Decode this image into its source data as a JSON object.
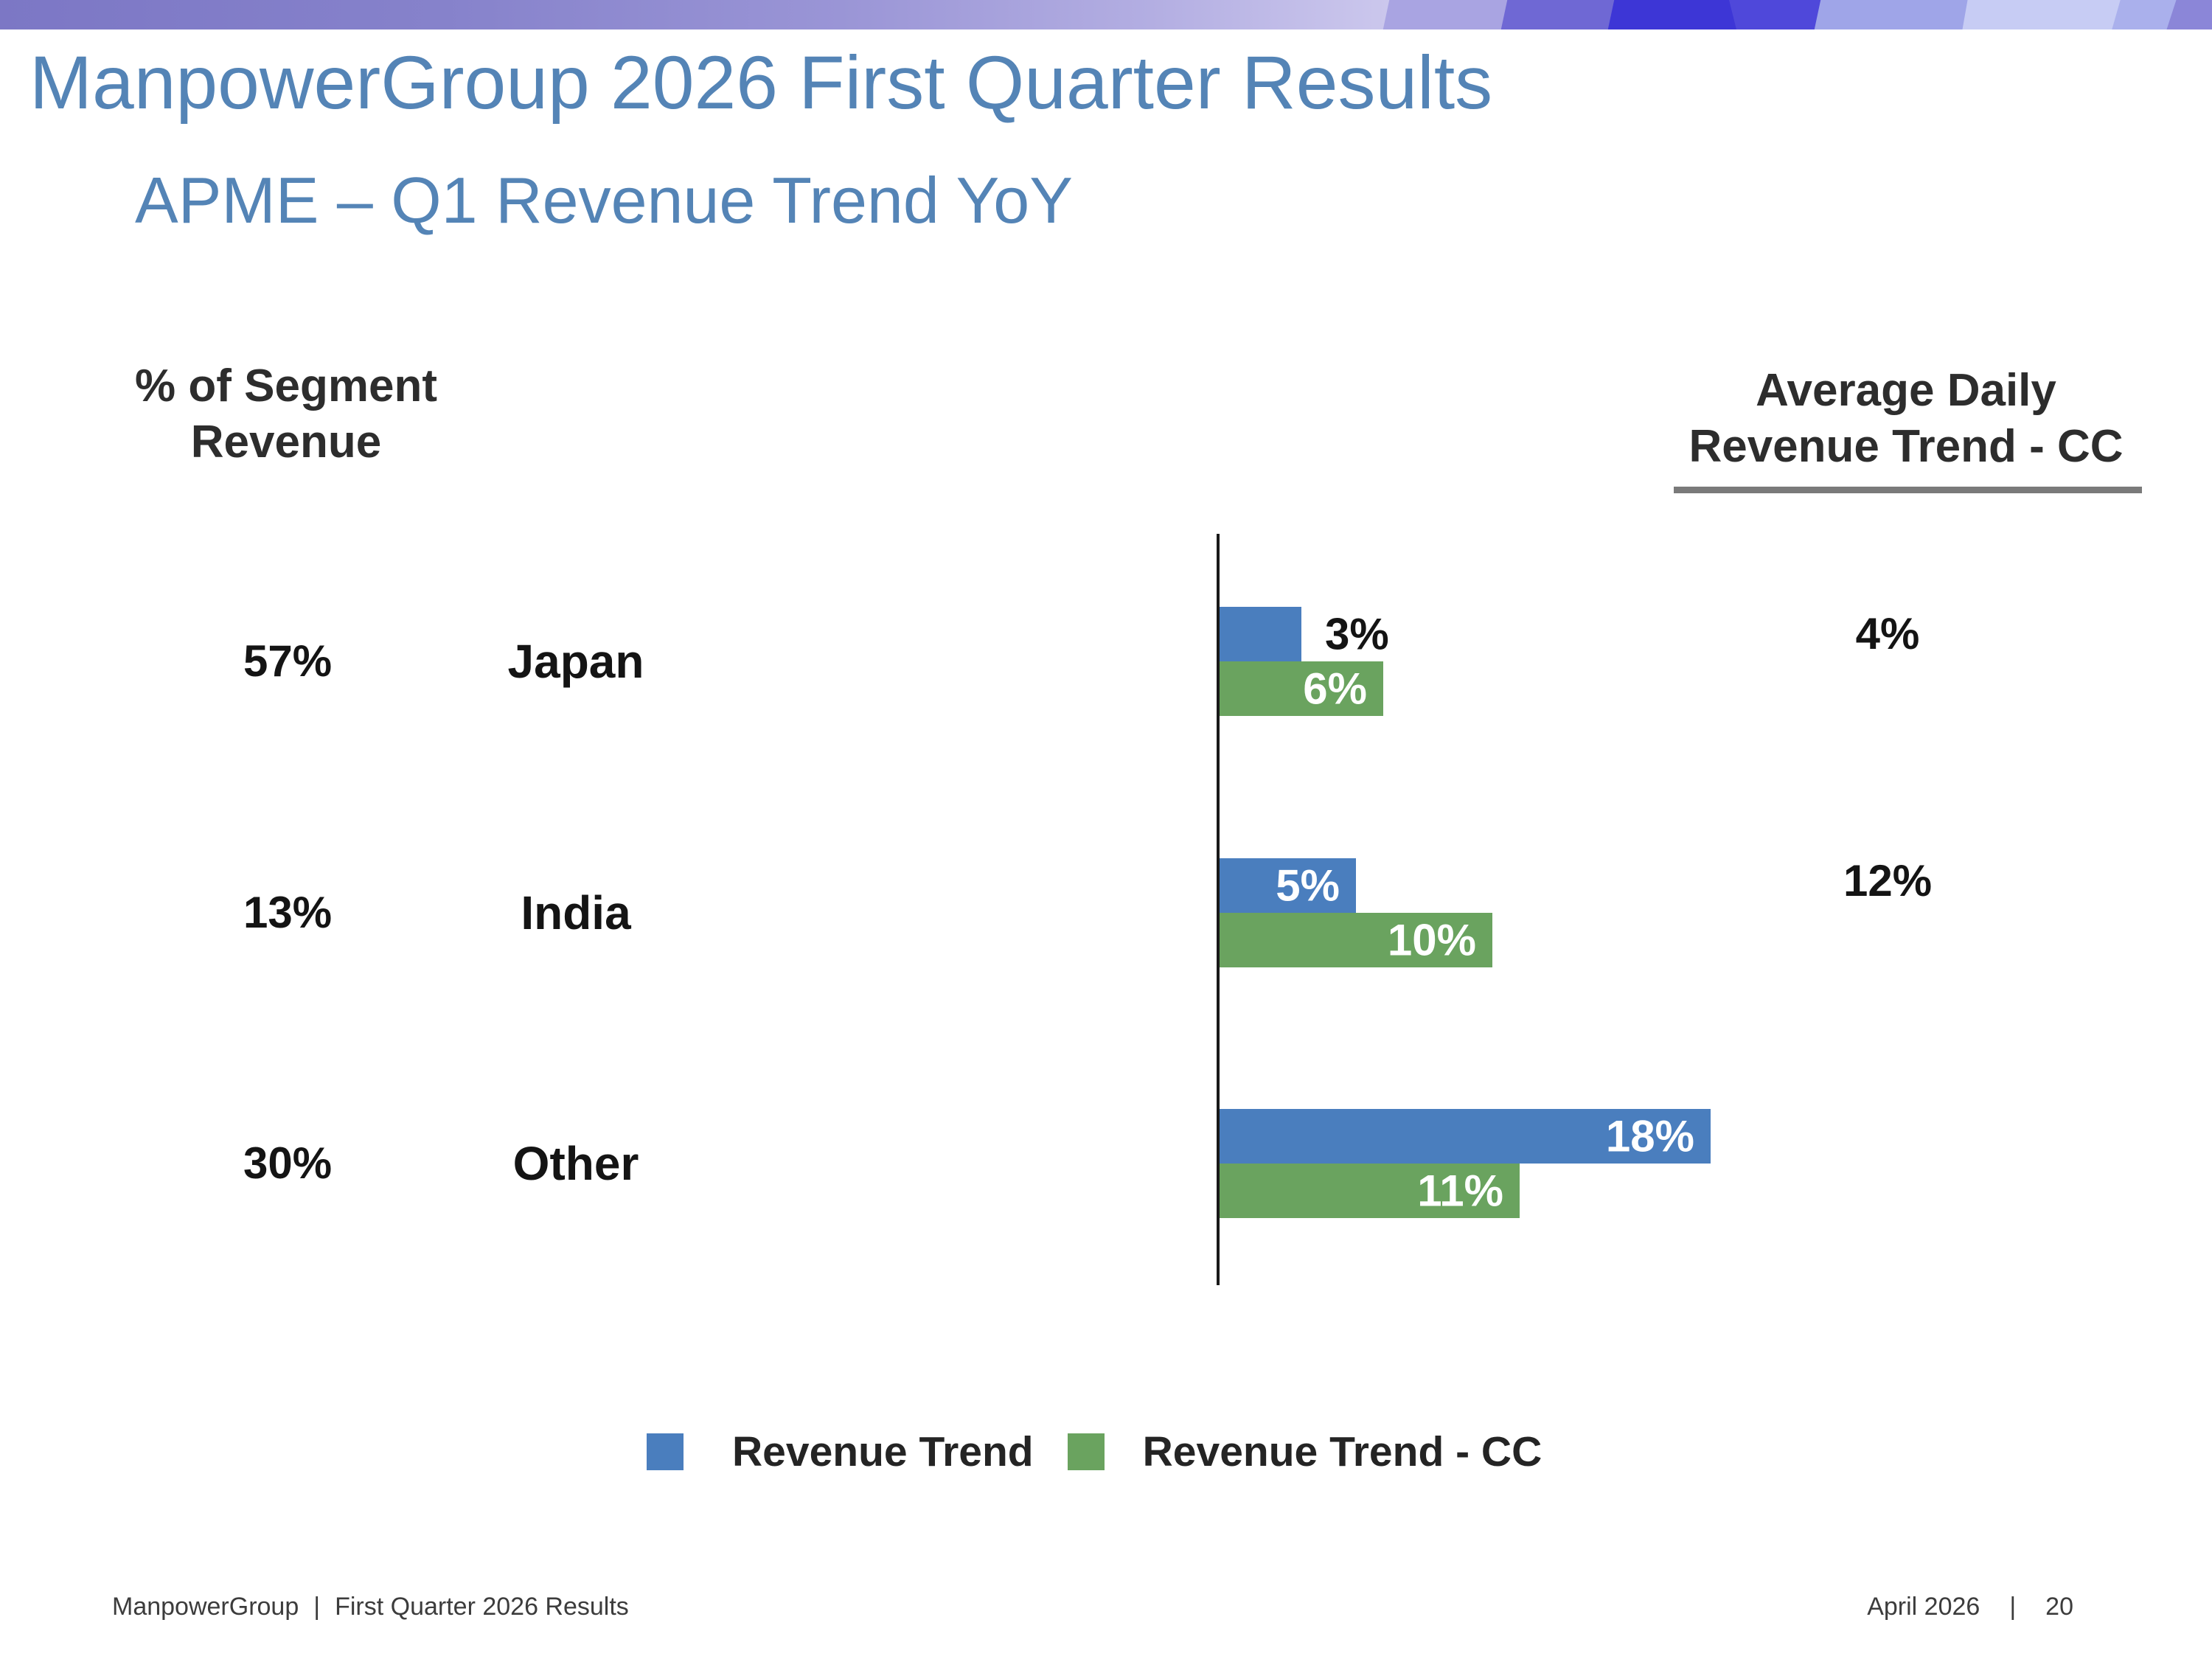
{
  "slide": {
    "title": "ManpowerGroup 2026 First Quarter Results",
    "subtitle": "APME – Q1 Revenue Trend YoY"
  },
  "chart_data": {
    "type": "bar",
    "orientation": "horizontal",
    "title": "APME – Q1 Revenue Trend YoY",
    "left_header": [
      "% of Segment",
      "Revenue"
    ],
    "right_header": [
      "Average Daily",
      "Revenue Trend - CC"
    ],
    "categories": [
      "Japan",
      "India",
      "Other"
    ],
    "segment_revenue_pct": [
      "57%",
      "13%",
      "30%"
    ],
    "series": [
      {
        "name": "Revenue Trend",
        "color": "#4a7ebe",
        "values": [
          3,
          5,
          18
        ],
        "labels": [
          "3%",
          "5%",
          "18%"
        ]
      },
      {
        "name": "Revenue Trend - CC",
        "color": "#6aa35f",
        "values": [
          6,
          10,
          11
        ],
        "labels": [
          "6%",
          "10%",
          "11%"
        ]
      }
    ],
    "avg_daily_revenue_trend_cc": [
      "4%",
      "12%",
      ""
    ],
    "legend_position": "bottom",
    "xlim": [
      0,
      20
    ],
    "grid": false
  },
  "footer": {
    "left_parts": [
      "ManpowerGroup",
      "|",
      "First Quarter 2026 Results"
    ],
    "right_parts": [
      "April 2026",
      "|",
      "20"
    ]
  }
}
